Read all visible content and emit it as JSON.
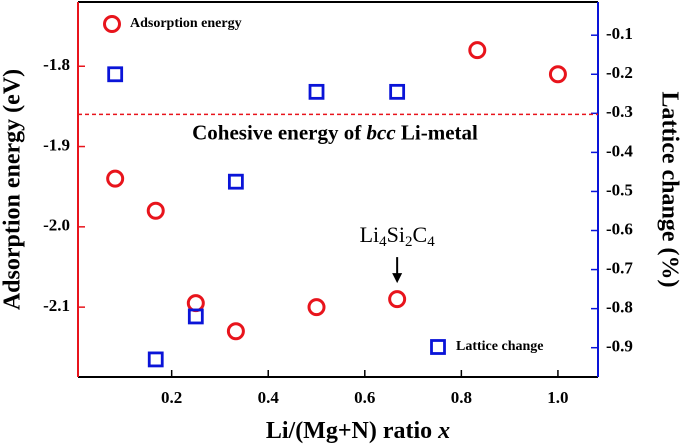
{
  "chart_data": {
    "type": "scatter",
    "x_label": [
      "Li/(Mg+N) ratio ",
      "x"
    ],
    "y_label": "Adsorption energy (eV)",
    "y2_label": "Lattice change (%)",
    "xlim": [
      0.006,
      1.083
    ],
    "xticks": [
      0.2,
      0.4,
      0.6,
      0.8,
      {
        "value": 1,
        "label": "1.0"
      }
    ],
    "ylim": [
      -2.187,
      -1.72
    ],
    "yticks": [
      -2.1,
      {
        "value": -2,
        "label": "-2.0"
      },
      -1.9,
      -1.8
    ],
    "y2lim": [
      -0.975,
      -0.015
    ],
    "y2ticks": [
      -0.9,
      -0.8,
      -0.7,
      -0.6,
      -0.5,
      -0.4,
      -0.3,
      -0.2,
      -0.1
    ],
    "y_color": "#e8141c",
    "y2_color": "#0a14d8",
    "series": [
      {
        "name": "Adsorption energy",
        "color": "#e8141c",
        "marker": "circle",
        "x": [
          0.083,
          0.167,
          0.25,
          0.333,
          0.5,
          0.667,
          0.833,
          1.0
        ],
        "values": [
          -1.94,
          -1.98,
          -2.095,
          -2.13,
          -2.1,
          -2.09,
          -1.78,
          -1.81
        ]
      },
      {
        "name": "Lattice change",
        "color": "#0a14d8",
        "marker": "square",
        "axis": "y2",
        "x": [
          0.083,
          0.167,
          0.25,
          0.333,
          0.5,
          0.667
        ],
        "values": [
          -0.2,
          -0.93,
          -0.82,
          -0.475,
          -0.245,
          -0.245
        ]
      }
    ],
    "reference_line": {
      "value": -1.86,
      "color": "#e8141c",
      "label": [
        "Cohesive energy of ",
        "bcc",
        " Li-metal"
      ]
    },
    "annotation": {
      "x": 0.667,
      "y": -2.09,
      "label": [
        "Li",
        "4",
        "Si",
        "2",
        "C",
        "4"
      ]
    }
  }
}
